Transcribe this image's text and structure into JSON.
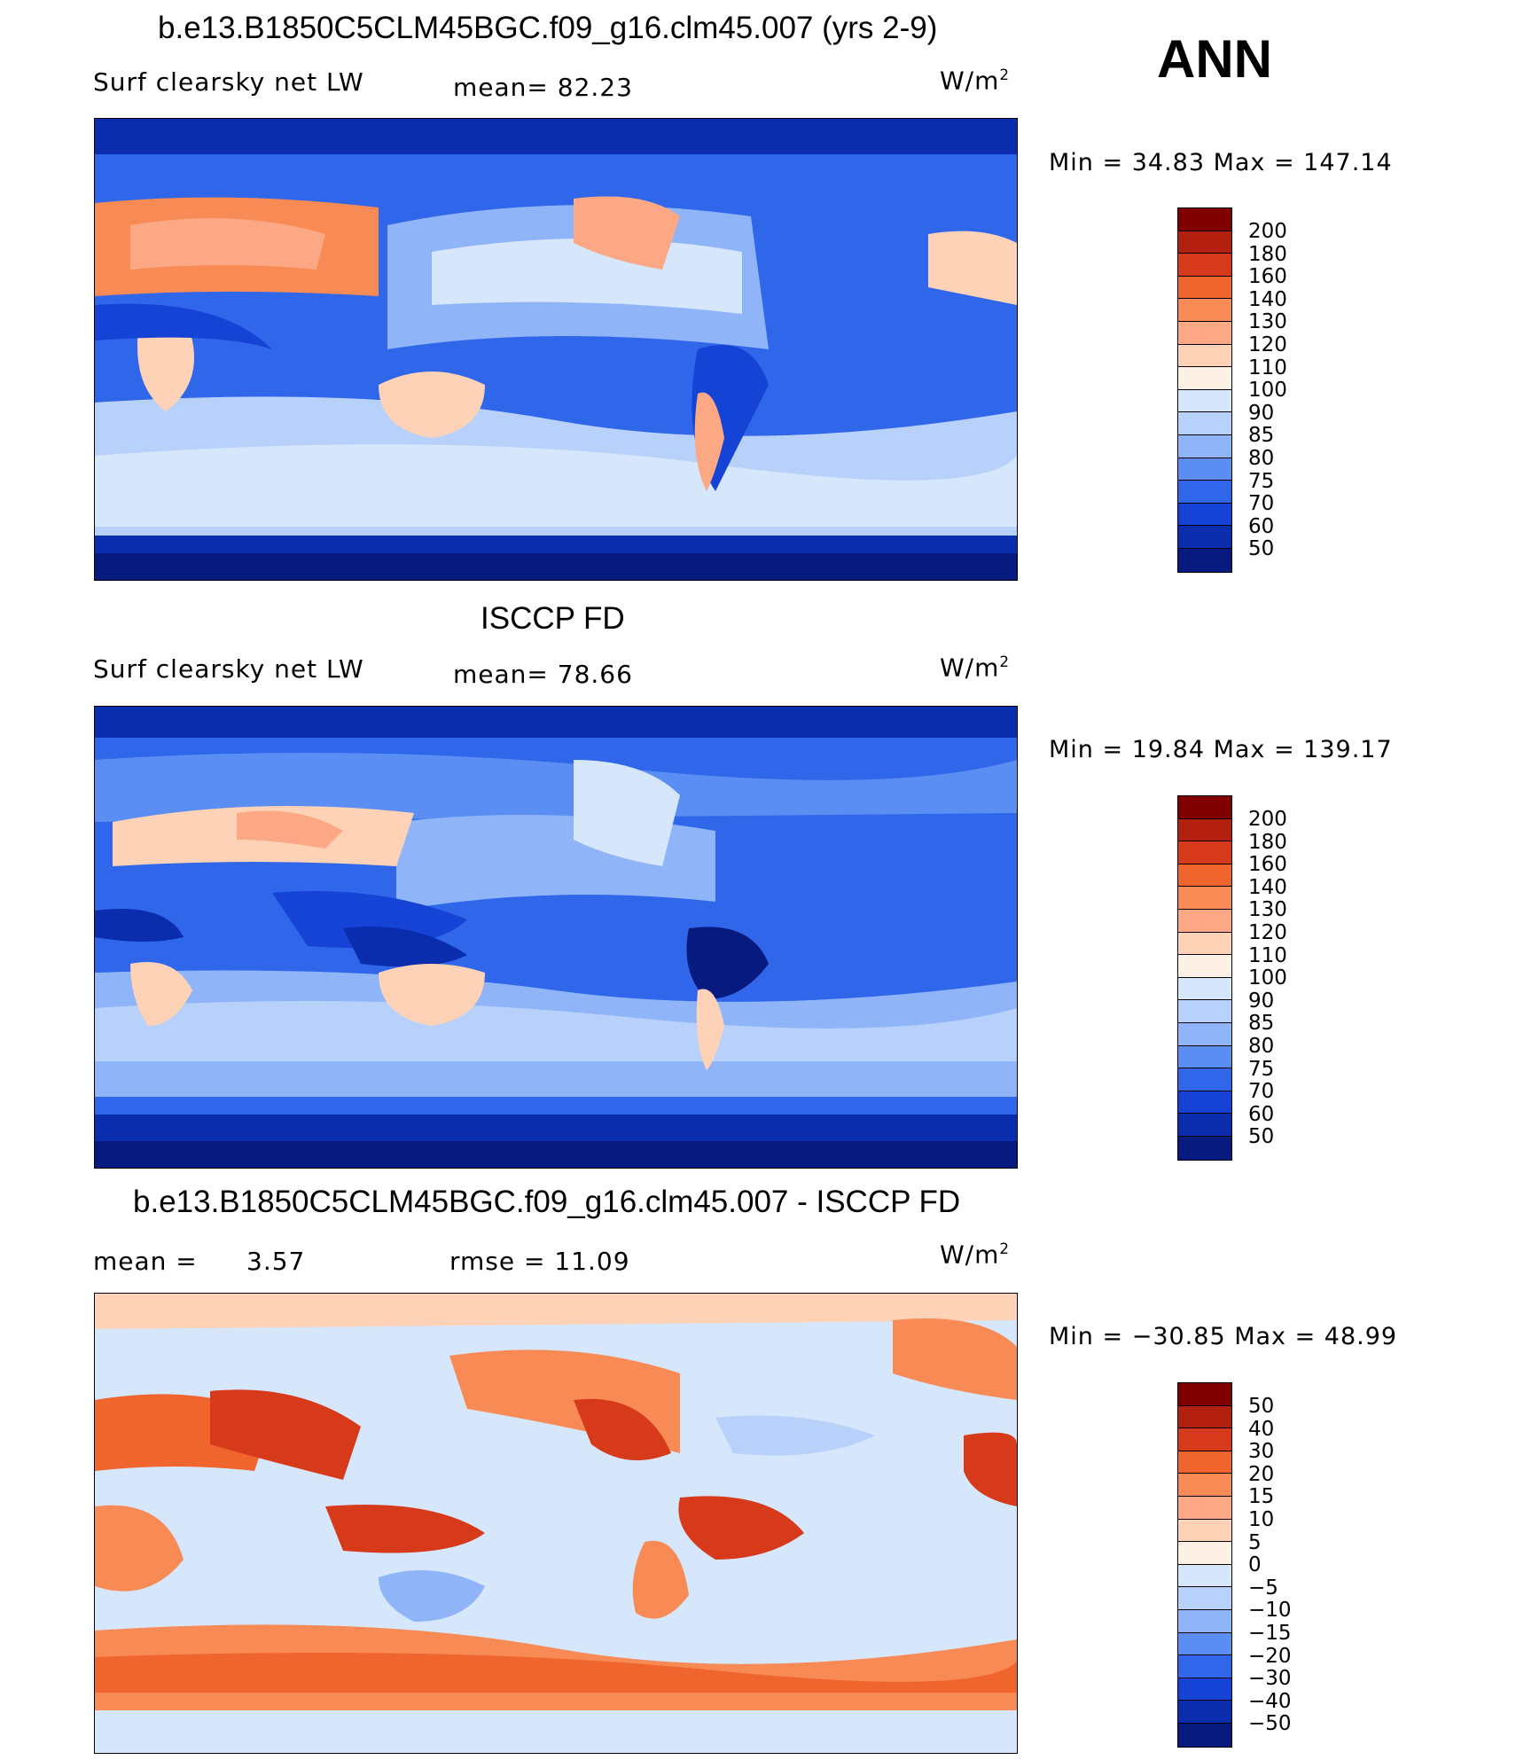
{
  "season": "ANN",
  "panels": [
    {
      "title": "b.e13.B1850C5CLM45BGC.f09_g16.clm45.007 (yrs 2-9)",
      "variable": "Surf clearsky net LW",
      "stat1": "mean=  82.23",
      "stat2": "",
      "units": "W/m",
      "units_sup": "2",
      "minmax": "Min =   34.83 Max =  147.14",
      "colorbar_labels": [
        "200",
        "180",
        "160",
        "140",
        "130",
        "120",
        "110",
        "100",
        "90",
        "85",
        "80",
        "75",
        "70",
        "60",
        "50"
      ],
      "colorbar_colors": [
        "#800000",
        "#b3200d",
        "#d63a1a",
        "#f0652e",
        "#f78a55",
        "#fca885",
        "#fdd2b7",
        "#fdf0e4",
        "#d6e6fb",
        "#b8d1fa",
        "#8fb4f7",
        "#5b8ef2",
        "#2f66ea",
        "#1543d6",
        "#0a2dae",
        "#061a80"
      ]
    },
    {
      "title": "ISCCP FD",
      "variable": "Surf clearsky net LW",
      "stat1": "mean=  78.66",
      "stat2": "",
      "units": "W/m",
      "units_sup": "2",
      "minmax": "Min =   19.84 Max =  139.17",
      "colorbar_labels": [
        "200",
        "180",
        "160",
        "140",
        "130",
        "120",
        "110",
        "100",
        "90",
        "85",
        "80",
        "75",
        "70",
        "60",
        "50"
      ],
      "colorbar_colors": [
        "#800000",
        "#b3200d",
        "#d63a1a",
        "#f0652e",
        "#f78a55",
        "#fca885",
        "#fdd2b7",
        "#fdf0e4",
        "#d6e6fb",
        "#b8d1fa",
        "#8fb4f7",
        "#5b8ef2",
        "#2f66ea",
        "#1543d6",
        "#0a2dae",
        "#061a80"
      ]
    },
    {
      "title": "b.e13.B1850C5CLM45BGC.f09_g16.clm45.007 - ISCCP FD",
      "variable": "mean =",
      "stat1": "3.57",
      "stat2": "rmse =   11.09",
      "units": "W/m",
      "units_sup": "2",
      "minmax": "Min = −30.85 Max =   48.99",
      "colorbar_labels": [
        "50",
        "40",
        "30",
        "20",
        "15",
        "10",
        "5",
        "0",
        "−5",
        "−10",
        "−15",
        "−20",
        "−30",
        "−40",
        "−50"
      ],
      "colorbar_colors": [
        "#800000",
        "#b3200d",
        "#d63a1a",
        "#f0652e",
        "#f78a55",
        "#fca885",
        "#fdd2b7",
        "#fdf0e4",
        "#d6e6fb",
        "#b8d1fa",
        "#8fb4f7",
        "#5b8ef2",
        "#2f66ea",
        "#1543d6",
        "#0a2dae",
        "#061a80"
      ]
    }
  ]
}
